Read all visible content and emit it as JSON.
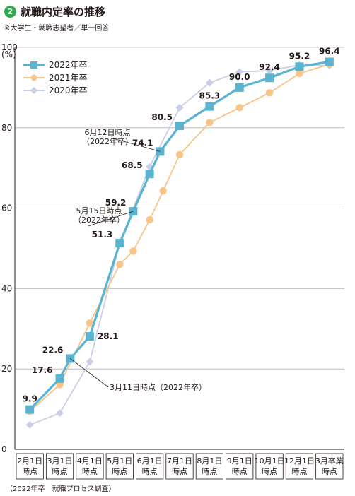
{
  "header": {
    "number": "2",
    "title": "就職内定率の推移",
    "subtitle": "※大学生・就職志望者／単一回答"
  },
  "source": "（2022年卒　就職プロセス調査）",
  "colors": {
    "s2022": "#5ab3cf",
    "s2021": "#f7c48a",
    "s2020": "#c9cfe6",
    "grid": "#b5b5b5",
    "title_badge": "#2fa84f"
  },
  "chart_data": {
    "type": "line",
    "title": "就職内定率の推移",
    "y_unit_label": "(%)",
    "ylim": [
      0,
      100
    ],
    "yticks": [
      0,
      20,
      40,
      60,
      80,
      100
    ],
    "ytick_labels": [
      "0",
      "20",
      "40",
      "60",
      "80",
      "100"
    ],
    "grid": true,
    "legend_position": "top-left",
    "categories": [
      [
        "2月1日",
        "時点"
      ],
      [
        "3月1日",
        "時点"
      ],
      [
        "4月1日",
        "時点"
      ],
      [
        "5月1日",
        "時点"
      ],
      [
        "6月1日",
        "時点"
      ],
      [
        "7月1日",
        "時点"
      ],
      [
        "8月1日",
        "時点"
      ],
      [
        "9月1日",
        "時点"
      ],
      [
        "10月1日",
        "時点"
      ],
      [
        "12月1日",
        "時点"
      ],
      [
        "3月卒業",
        "時点"
      ]
    ],
    "series": [
      {
        "name": "2022年卒",
        "key": "s2022",
        "marker": "square",
        "points": [
          {
            "x": 0,
            "y": 9.9
          },
          {
            "x": 1,
            "y": 17.6
          },
          {
            "x": 1.35,
            "y": 22.6
          },
          {
            "x": 2,
            "y": 28.1
          },
          {
            "x": 3,
            "y": 51.3
          },
          {
            "x": 3.45,
            "y": 59.2
          },
          {
            "x": 4,
            "y": 68.5
          },
          {
            "x": 4.35,
            "y": 74.1
          },
          {
            "x": 5,
            "y": 80.5
          },
          {
            "x": 6,
            "y": 85.3
          },
          {
            "x": 7,
            "y": 90.0
          },
          {
            "x": 8,
            "y": 92.4
          },
          {
            "x": 9,
            "y": 95.2
          },
          {
            "x": 10,
            "y": 96.4
          }
        ]
      },
      {
        "name": "2021年卒",
        "key": "s2021",
        "marker": "circle",
        "points": [
          {
            "x": 0,
            "y": 9.5
          },
          {
            "x": 1,
            "y": 16.1
          },
          {
            "x": 2,
            "y": 31.4
          },
          {
            "x": 3,
            "y": 46.0
          },
          {
            "x": 3.45,
            "y": 49.3
          },
          {
            "x": 4,
            "y": 57.1
          },
          {
            "x": 4.45,
            "y": 64.3
          },
          {
            "x": 5,
            "y": 73.3
          },
          {
            "x": 6,
            "y": 81.3
          },
          {
            "x": 7,
            "y": 85.0
          },
          {
            "x": 8,
            "y": 88.7
          },
          {
            "x": 9,
            "y": 93.5
          },
          {
            "x": 10,
            "y": 95.8
          }
        ]
      },
      {
        "name": "2020年卒",
        "key": "s2020",
        "marker": "diamond",
        "points": [
          {
            "x": 0,
            "y": 6.1
          },
          {
            "x": 1,
            "y": 9.0
          },
          {
            "x": 2,
            "y": 21.8
          },
          {
            "x": 3,
            "y": 51.3
          },
          {
            "x": 4,
            "y": 70.3
          },
          {
            "x": 5,
            "y": 85.0
          },
          {
            "x": 6,
            "y": 91.2
          },
          {
            "x": 7,
            "y": 93.9
          },
          {
            "x": 8,
            "y": 94.2
          },
          {
            "x": 9,
            "y": 95.6
          },
          {
            "x": 10,
            "y": 95.5
          }
        ]
      }
    ],
    "data_labels": [
      {
        "x": 0,
        "y": 9.9,
        "text": "9.9",
        "pos": "above"
      },
      {
        "x": 1,
        "y": 17.6,
        "text": "17.6",
        "pos": "left"
      },
      {
        "x": 1.35,
        "y": 22.6,
        "text": "22.6",
        "pos": "left"
      },
      {
        "x": 2,
        "y": 28.1,
        "text": "28.1",
        "pos": "right"
      },
      {
        "x": 3,
        "y": 51.3,
        "text": "51.3",
        "pos": "left"
      },
      {
        "x": 3.45,
        "y": 59.2,
        "text": "59.2",
        "pos": "left"
      },
      {
        "x": 4,
        "y": 68.5,
        "text": "68.5",
        "pos": "left"
      },
      {
        "x": 4.35,
        "y": 74.1,
        "text": "74.1",
        "pos": "left"
      },
      {
        "x": 5,
        "y": 80.5,
        "text": "80.5",
        "pos": "left"
      },
      {
        "x": 6,
        "y": 85.3,
        "text": "85.3",
        "pos": "above"
      },
      {
        "x": 7,
        "y": 90.0,
        "text": "90.0",
        "pos": "above"
      },
      {
        "x": 8,
        "y": 92.4,
        "text": "92.4",
        "pos": "above"
      },
      {
        "x": 9,
        "y": 95.2,
        "text": "95.2",
        "pos": "above"
      },
      {
        "x": 10,
        "y": 96.4,
        "text": "96.4",
        "pos": "above"
      }
    ],
    "annotations": [
      {
        "lines": [
          "6月12日時点",
          "（2022年卒）"
        ],
        "point_x": 4.35,
        "point_y": 74.1
      },
      {
        "lines": [
          "5月15日時点",
          "（2022年卒）"
        ],
        "point_x": 3.45,
        "point_y": 59.2
      },
      {
        "lines": [
          "3月11日時点（2022年卒）"
        ],
        "point_x": 1.35,
        "point_y": 22.6
      }
    ]
  }
}
